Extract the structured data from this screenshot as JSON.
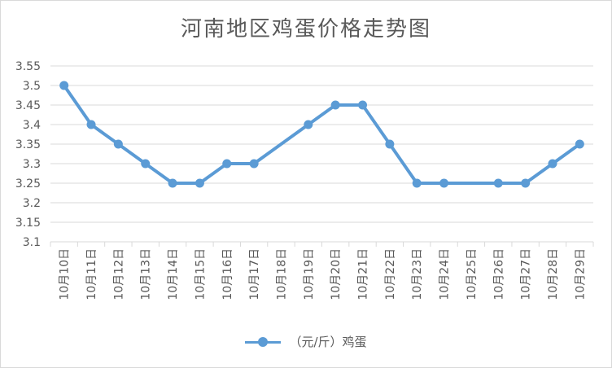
{
  "chart_data": {
    "type": "line",
    "title": "河南地区鸡蛋价格走势图",
    "categories": [
      "10月10日",
      "10月11日",
      "10月12日",
      "10月13日",
      "10月14日",
      "10月15日",
      "10月16日",
      "10月17日",
      "10月18日",
      "10月19日",
      "10月20日",
      "10月21日",
      "10月22日",
      "10月23日",
      "10月24日",
      "10月25日",
      "10月26日",
      "10月27日",
      "10月28日",
      "10月29日"
    ],
    "series": [
      {
        "name": "（元/斤）鸡蛋",
        "color": "#5b9bd5",
        "values": [
          3.5,
          3.4,
          3.35,
          3.3,
          3.25,
          3.25,
          3.3,
          3.3,
          null,
          3.4,
          3.45,
          3.45,
          3.35,
          3.25,
          3.25,
          null,
          3.25,
          3.25,
          3.3,
          3.35
        ]
      }
    ],
    "ylim": [
      3.1,
      3.55
    ],
    "yticks": [
      "3.1",
      "3.15",
      "3.2",
      "3.25",
      "3.3",
      "3.35",
      "3.4",
      "3.45",
      "3.5",
      "3.55"
    ],
    "grid": true,
    "legend_position": "bottom"
  }
}
